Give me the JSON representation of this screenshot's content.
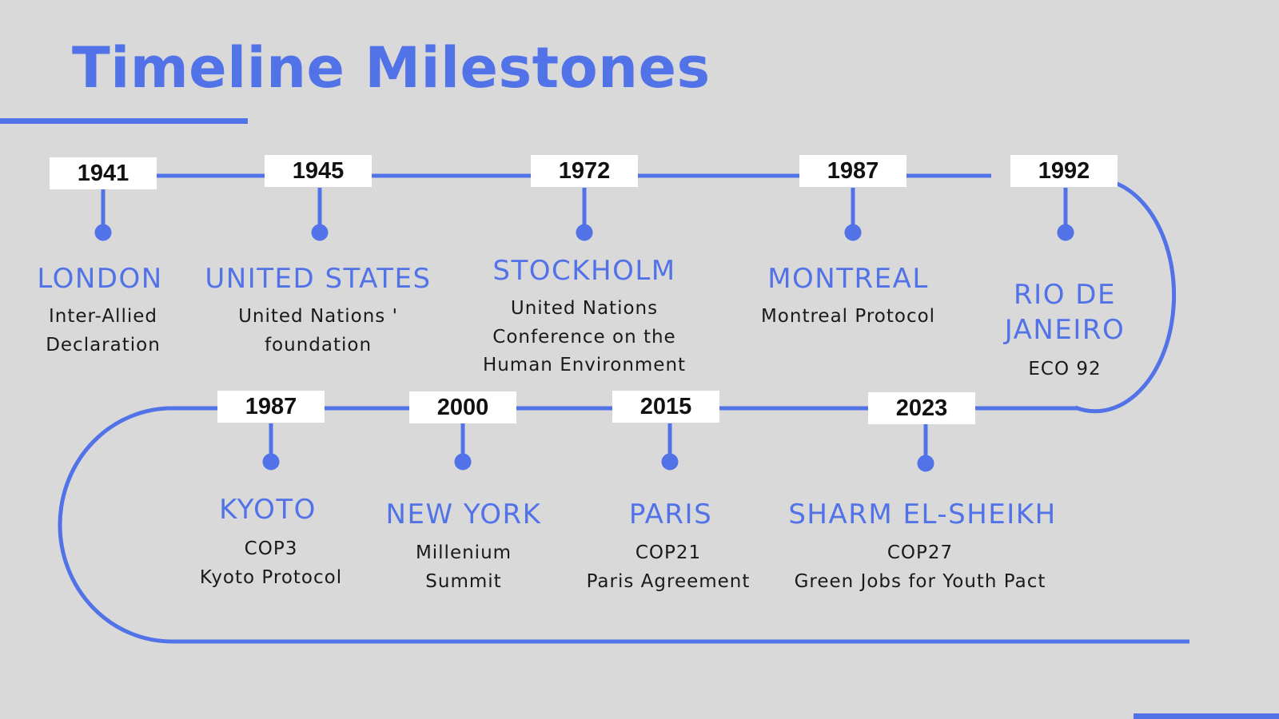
{
  "title": "Timeline Milestones",
  "colors": {
    "accent": "#5272e8",
    "background": "#d9d9d9",
    "label_box": "#ffffff"
  },
  "milestones": [
    {
      "year": "1941",
      "city": "LONDON",
      "event": "Inter-Allied\nDeclaration"
    },
    {
      "year": "1945",
      "city": "UNITED STATES",
      "event": "United Nations '\nfoundation"
    },
    {
      "year": "1972",
      "city": "STOCKHOLM",
      "event": "United Nations\nConference on the\nHuman Environment"
    },
    {
      "year": "1987",
      "city": "MONTREAL",
      "event": "Montreal Protocol"
    },
    {
      "year": "1992",
      "city": "RIO DE\nJANEIRO",
      "event": "ECO 92"
    },
    {
      "year": "1987",
      "city": "KYOTO",
      "event": "COP3\nKyoto Protocol"
    },
    {
      "year": "2000",
      "city": "NEW YORK",
      "event": "Millenium\nSummit"
    },
    {
      "year": "2015",
      "city": "PARIS",
      "event": "COP21\nParis Agreement"
    },
    {
      "year": "2023",
      "city": "SHARM EL-SHEIKH",
      "event": "COP27\nGreen Jobs for Youth Pact"
    }
  ]
}
